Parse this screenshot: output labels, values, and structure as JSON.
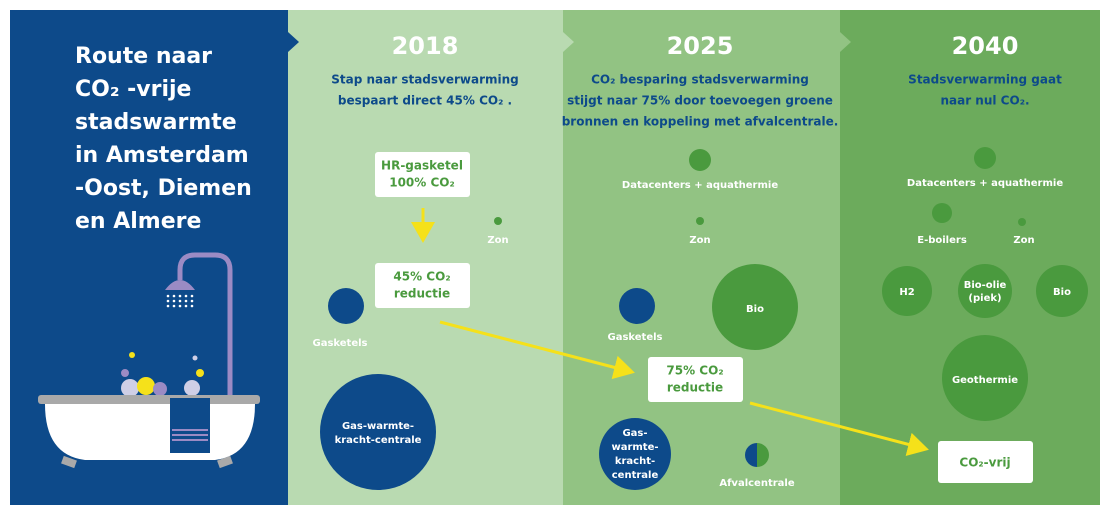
{
  "sidebar": {
    "title_lines": [
      "Route naar",
      "CO₂ -vrije",
      "stadswarmte",
      "in Amsterdam",
      "-Oost, Diemen",
      "en Almere"
    ]
  },
  "columns": [
    {
      "year": "2018",
      "description_lines": [
        "Stap naar stadsverwarming",
        "bespaart direct 45% CO₂ ."
      ],
      "boxes": [
        [
          "HR-gasketel",
          "100% CO₂"
        ],
        [
          "45% CO₂",
          "reductie"
        ]
      ],
      "nodes": [
        [
          "Zon"
        ],
        [
          "Gasketels"
        ],
        [
          "Gas-warmte-",
          "kracht-centrale"
        ]
      ]
    },
    {
      "year": "2025",
      "description_lines": [
        "CO₂ besparing stadsverwarming",
        "stijgt naar 75% door toevoegen groene",
        "bronnen en koppeling met afvalcentrale."
      ],
      "boxes": [
        [
          "75% CO₂",
          "reductie"
        ]
      ],
      "nodes": [
        [
          "Datacenters + aquathermie"
        ],
        [
          "Zon"
        ],
        [
          "Gasketels"
        ],
        [
          "Bio"
        ],
        [
          "Gas-",
          "warmte-",
          "kracht-",
          "centrale"
        ],
        [
          "Afvalcentrale"
        ]
      ]
    },
    {
      "year": "2040",
      "description_lines": [
        "Stadsverwarming gaat",
        "naar nul CO₂."
      ],
      "boxes": [
        [
          "CO₂-vrij"
        ]
      ],
      "nodes": [
        [
          "Datacenters + aquathermie"
        ],
        [
          "E-boilers"
        ],
        [
          "Zon"
        ],
        [
          "H2"
        ],
        [
          "Bio-olie",
          "(piek)"
        ],
        [
          "Bio"
        ],
        [
          "Geothermie"
        ]
      ]
    }
  ]
}
